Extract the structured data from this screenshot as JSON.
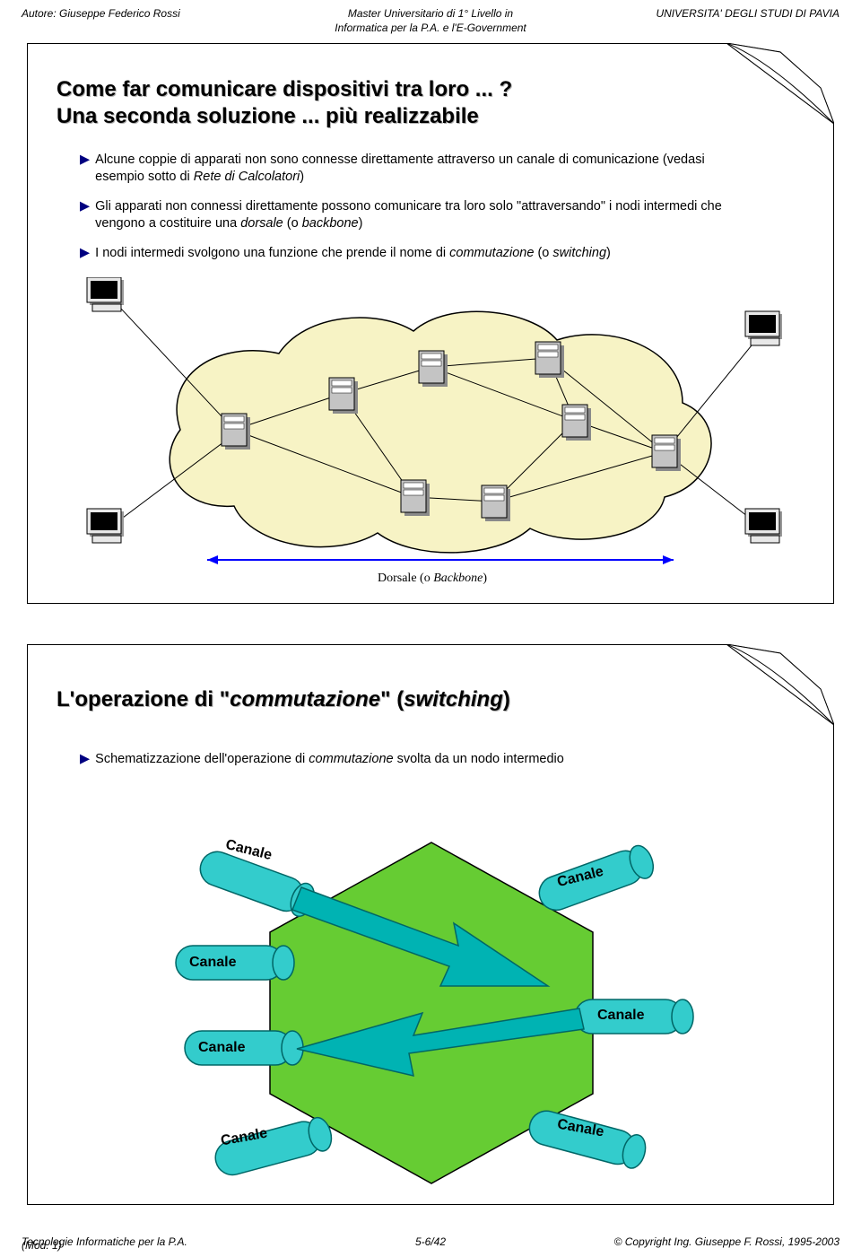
{
  "header": {
    "author_prefix": "Autore: ",
    "author": "Giuseppe Federico Rossi",
    "center_line1": "Master Universitario di 1° Livello in",
    "center_line2": "Informatica per la P.A. e l'E-Government",
    "right": "UNIVERSITA' DEGLI STUDI DI PAVIA"
  },
  "slide1": {
    "title_line1": "Come far comunicare dispositivi tra loro ... ?",
    "title_line2": "Una seconda soluzione ... più realizzabile",
    "bullet1": "Alcune coppie di apparati non sono connesse direttamente attraverso un canale di comunicazione (vedasi esempio sotto di <i>Rete di Calcolatori</i>)",
    "bullet2": "Gli apparati non connessi direttamente possono comunicare tra loro solo \"attraversando\" i nodi intermedi che vengono a costituire una <i>dorsale</i> (o <i>backbone</i>)",
    "bullet3": "I nodi intermedi svolgono una funzione che prende il nome di <i>commutazione</i> (o <i>switching</i>)",
    "dorsale_label": "Dorsale (o <i>Backbone</i>)"
  },
  "slide2": {
    "title": "L'operazione di \"<i>commutazione</i>\" (<i>switching</i>)",
    "bullet1": "Schematizzazione dell'operazione di <i>commutazione</i> svolta da un nodo intermedio",
    "canale": "Canale"
  },
  "footer": {
    "left_line1": "Tecnologie Informatiche per la P.A.",
    "left_line2": "(Mod. 1)",
    "center": "5-6/42",
    "right": "© Copyright Ing. Giuseppe F. Rossi, 1995-2003"
  },
  "colors": {
    "cloud_fill": "#f7f3c5",
    "cloud_stroke": "#000000",
    "server_body": "#b8b8b8",
    "server_dark": "#8a8a8a",
    "computer_body": "#d8d8d8",
    "hexagon_fill": "#66cc33",
    "cylinder_fill": "#33cccc",
    "cylinder_stroke": "#008888",
    "arrow_fill": "#00b0b0",
    "curl_fill": "#66cccc",
    "bullet_tri": "#000080"
  }
}
